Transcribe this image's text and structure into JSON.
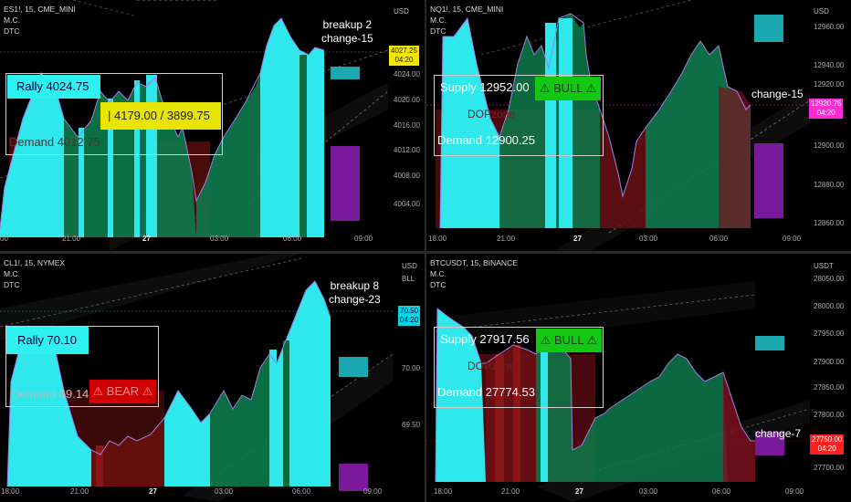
{
  "panes": [
    {
      "symbol": "ES1!, 15, CME_MINI",
      "indicators": [
        "M.C.",
        "DTC"
      ],
      "unit": "USD",
      "y_ticks": [
        "4024.00",
        "4020.00",
        "4016.00",
        "4012.00",
        "4008.00",
        "4004.00"
      ],
      "x_ticks": [
        "00",
        "21:00",
        "27",
        "03:00",
        "06:00",
        "09:00"
      ],
      "price_tag": [
        "4027.25",
        "04:20"
      ],
      "price_tag_color": "#f5e600",
      "note_lines": [
        "breakup 2",
        "change-15"
      ],
      "rally": "Rally  4024.75",
      "range": "|  4179.00 / 3899.75",
      "demand": "Demand  4012.75"
    },
    {
      "symbol": "NQ1!, 15, CME_MINI",
      "indicators": [
        "M.C.",
        "DTC"
      ],
      "unit": "USD",
      "y_ticks": [
        "12960.00",
        "12940.00",
        "12920.00",
        "12900.00",
        "12880.00",
        "12860.00"
      ],
      "x_ticks": [
        "18:00",
        "21:00",
        "27",
        "03:00",
        "06:00",
        "09:00"
      ],
      "price_tag": [
        "12920.75",
        "04:20"
      ],
      "price_tag_color": "#ff2bd6",
      "note": "change-15",
      "supply": "Supply  12952.00",
      "bull": "⚠ BULL ⚠",
      "ghost": "DOPzone",
      "demand": "Demand  12900.25"
    },
    {
      "symbol": "CL1!, 15, NYMEX",
      "indicators": [
        "M.C.",
        "DTC"
      ],
      "unit": "USD",
      "unit2": "BLL",
      "y_ticks": [
        "70.00",
        "69.50"
      ],
      "x_ticks": [
        "18:00",
        "21:00",
        "27",
        "03:00",
        "06:00",
        "09:00"
      ],
      "price_tag": [
        "70.50",
        "04:20"
      ],
      "price_tag_color": "#00d8e8",
      "note_lines": [
        "breakup 8",
        "change-23"
      ],
      "rally": "Rally  70.10",
      "demand": "Demand  69.14",
      "bear": "⚠ BEAR ⚠"
    },
    {
      "symbol": "BTCUSDT, 15, BINANCE",
      "indicators": [
        "M.C.",
        "DTC"
      ],
      "unit": "USDT",
      "y_ticks": [
        "28050.00",
        "28000.00",
        "27950.00",
        "27900.00",
        "27850.00",
        "27800.00",
        "27700.00"
      ],
      "x_ticks": [
        "18:00",
        "21:00",
        "27",
        "03:00",
        "06:00",
        "09:00"
      ],
      "price_tag": [
        "27750.00",
        "04:20"
      ],
      "price_tag_color": "#ff2020",
      "note": "change-7",
      "supply": "Supply  27917.56",
      "bull": "⚠ BULL ⚠",
      "ghost": "DOPzone",
      "demand": "Demand  27774.53"
    }
  ]
}
